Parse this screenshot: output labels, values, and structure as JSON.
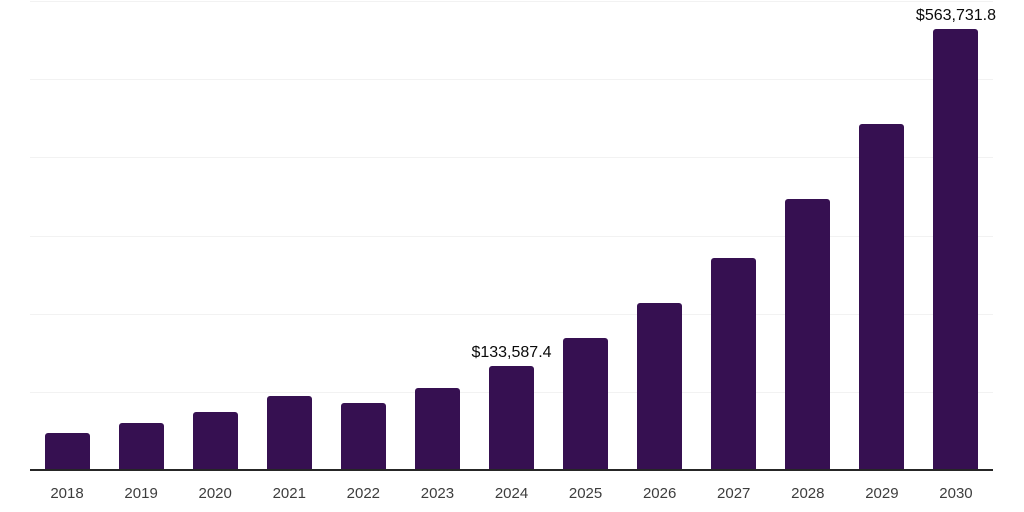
{
  "chart": {
    "background_color": "#ffffff",
    "bar_color": "#361051",
    "grid_color": "#f2f2f2",
    "axis_line_color": "#262626",
    "value_label_color": "#0a0a0a",
    "tick_label_color": "#3d3d3d"
  },
  "chart_data": {
    "type": "bar",
    "categories": [
      "2018",
      "2019",
      "2020",
      "2021",
      "2022",
      "2023",
      "2024",
      "2025",
      "2026",
      "2027",
      "2028",
      "2029",
      "2030"
    ],
    "values": [
      47400,
      59500,
      74200,
      94700,
      85100,
      105000,
      133587.4,
      169000,
      213700,
      271300,
      346900,
      442800,
      563731.8
    ],
    "data_labels": [
      "",
      "",
      "",
      "",
      "",
      "",
      "$133,587.4",
      "",
      "",
      "",
      "",
      "",
      "$563,731.8"
    ],
    "title": "",
    "xlabel": "",
    "ylabel": "",
    "ylim": [
      0,
      600000
    ],
    "ytick_step": 100000,
    "grid": "horizontal",
    "legend": "none",
    "y_axis_labels_shown": false
  }
}
